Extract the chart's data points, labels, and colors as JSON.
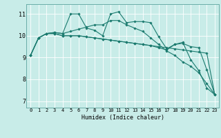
{
  "title": "",
  "xlabel": "Humidex (Indice chaleur)",
  "bg_color": "#c8ece8",
  "line_color": "#1a7a6e",
  "grid_color": "#ffffff",
  "xlim": [
    -0.5,
    23.5
  ],
  "ylim": [
    6.7,
    11.45
  ],
  "yticks": [
    7,
    8,
    9,
    10,
    11
  ],
  "xticks": [
    0,
    1,
    2,
    3,
    4,
    5,
    6,
    7,
    8,
    9,
    10,
    11,
    12,
    13,
    14,
    15,
    16,
    17,
    18,
    19,
    20,
    21,
    22,
    23
  ],
  "series": [
    [
      9.1,
      9.9,
      10.1,
      10.15,
      10.1,
      11.0,
      11.0,
      10.35,
      10.25,
      10.0,
      11.0,
      11.1,
      10.6,
      10.65,
      10.65,
      10.6,
      9.95,
      9.4,
      9.6,
      9.7,
      8.9,
      8.4,
      7.6,
      7.3
    ],
    [
      9.1,
      9.9,
      10.1,
      10.15,
      10.1,
      10.2,
      10.3,
      10.4,
      10.5,
      10.5,
      10.7,
      10.7,
      10.5,
      10.35,
      10.2,
      9.9,
      9.6,
      9.3,
      9.1,
      8.8,
      8.6,
      8.3,
      7.8,
      7.3
    ],
    [
      9.1,
      9.9,
      10.1,
      10.1,
      10.0,
      10.0,
      10.0,
      9.95,
      9.9,
      9.85,
      9.8,
      9.75,
      9.7,
      9.65,
      9.6,
      9.55,
      9.5,
      9.45,
      9.4,
      9.35,
      9.3,
      9.25,
      9.2,
      7.3
    ],
    [
      9.1,
      9.9,
      10.1,
      10.1,
      10.0,
      10.0,
      10.0,
      9.95,
      9.9,
      9.85,
      9.8,
      9.75,
      9.7,
      9.65,
      9.6,
      9.55,
      9.45,
      9.35,
      9.6,
      9.65,
      9.5,
      9.45,
      8.45,
      7.3
    ]
  ]
}
